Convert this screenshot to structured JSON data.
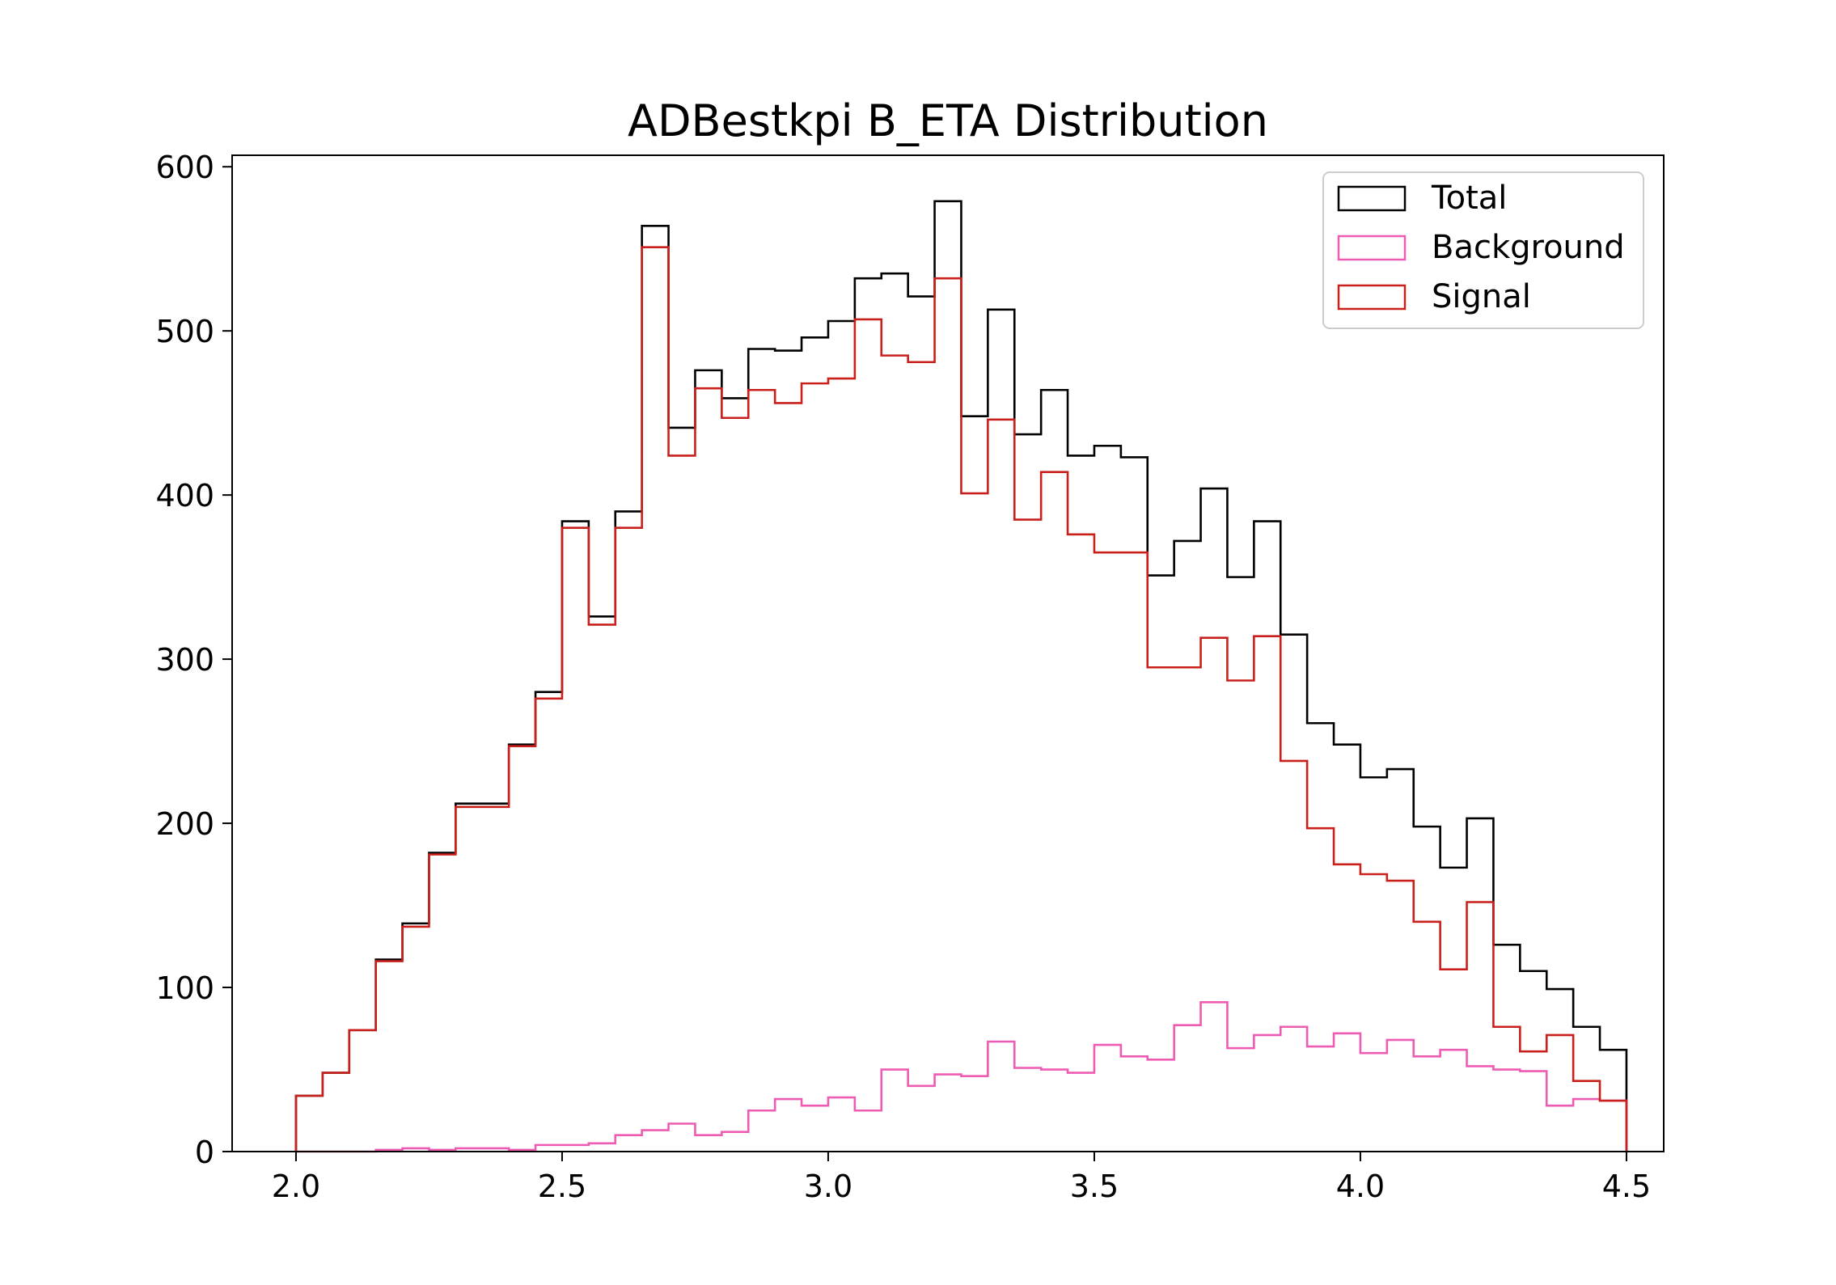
{
  "chart_data": {
    "type": "histogram-step",
    "title": "ADBestkpi B_ETA Distribution",
    "xlabel": "",
    "ylabel": "",
    "xlim": [
      1.88,
      4.57
    ],
    "ylim": [
      0,
      607
    ],
    "xticks": [
      2.0,
      2.5,
      3.0,
      3.5,
      4.0,
      4.5
    ],
    "xtick_labels": [
      "2.0",
      "2.5",
      "3.0",
      "3.5",
      "4.0",
      "4.5"
    ],
    "yticks": [
      0,
      100,
      200,
      300,
      400,
      500,
      600
    ],
    "ytick_labels": [
      "0",
      "100",
      "200",
      "300",
      "400",
      "500",
      "600"
    ],
    "grid": false,
    "legend_position": "top-right",
    "bin_start": 2.0,
    "bin_width": 0.05,
    "series": [
      {
        "name": "Total",
        "color": "#000000",
        "values": [
          34,
          48,
          74,
          117,
          139,
          182,
          212,
          212,
          248,
          280,
          384,
          326,
          390,
          564,
          441,
          476,
          459,
          489,
          488,
          496,
          506,
          532,
          535,
          521,
          579,
          448,
          513,
          437,
          464,
          424,
          430,
          423,
          351,
          372,
          404,
          350,
          384,
          315,
          261,
          248,
          228,
          233,
          198,
          173,
          203,
          126,
          110,
          99,
          76,
          62
        ]
      },
      {
        "name": "Background",
        "color": "#ee5bb2",
        "values": [
          0,
          0,
          0,
          1,
          2,
          1,
          2,
          2,
          1,
          4,
          4,
          5,
          10,
          13,
          17,
          10,
          12,
          25,
          32,
          28,
          33,
          25,
          50,
          40,
          47,
          46,
          67,
          51,
          50,
          48,
          65,
          58,
          56,
          77,
          91,
          63,
          71,
          76,
          64,
          72,
          60,
          68,
          58,
          62,
          52,
          50,
          49,
          28,
          32,
          31
        ]
      },
      {
        "name": "Signal",
        "color": "#c9201c",
        "values": [
          34,
          48,
          74,
          116,
          137,
          181,
          210,
          210,
          247,
          276,
          380,
          321,
          380,
          551,
          424,
          465,
          447,
          464,
          456,
          468,
          471,
          507,
          485,
          481,
          532,
          401,
          446,
          385,
          414,
          376,
          365,
          365,
          295,
          295,
          313,
          287,
          314,
          238,
          197,
          175,
          169,
          165,
          140,
          111,
          152,
          76,
          61,
          71,
          43,
          31
        ]
      }
    ]
  }
}
